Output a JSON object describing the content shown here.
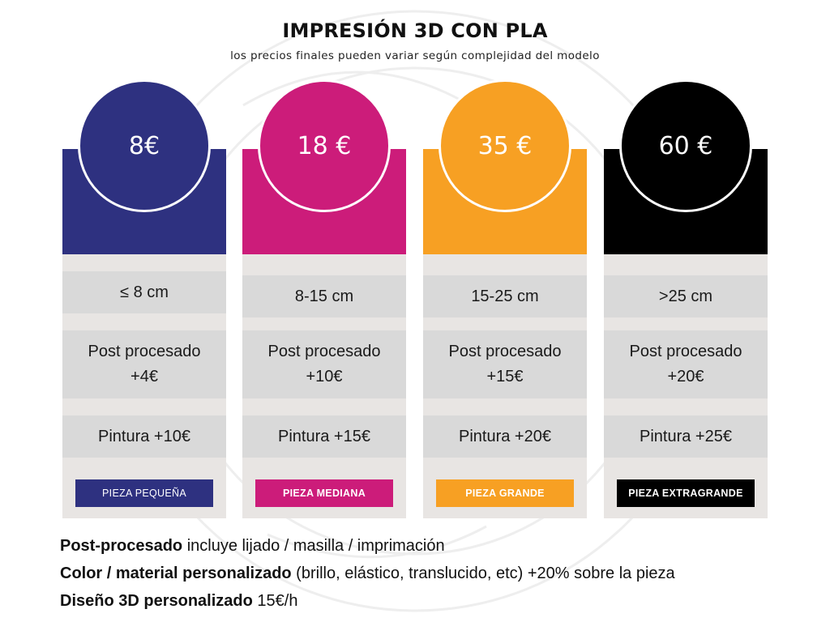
{
  "header": {
    "title": "IMPRESIÓN 3D CON PLA",
    "subtitle": "los precios finales pueden variar según complejidad del modelo"
  },
  "plans": [
    {
      "price": "8€",
      "size": "≤ 8 cm",
      "post_line1": "Post procesado",
      "post_line2": "+4€",
      "paint": "Pintura +10€",
      "tag": "PIEZA PEQUEÑA",
      "color": "#2e3180"
    },
    {
      "price": "18 €",
      "size": "8-15 cm",
      "post_line1": "Post procesado",
      "post_line2": "+10€",
      "paint": "Pintura +15€",
      "tag": "PIEZA MEDIANA",
      "color": "#cc1c7a"
    },
    {
      "price": "35 €",
      "size": "15-25 cm",
      "post_line1": "Post procesado",
      "post_line2": "+15€",
      "paint": "Pintura +20€",
      "tag": "PIEZA GRANDE",
      "color": "#f7a023"
    },
    {
      "price": "60 €",
      "size": ">25 cm",
      "post_line1": "Post procesado",
      "post_line2": "+20€",
      "paint": "Pintura +25€",
      "tag": "PIEZA EXTRAGRANDE",
      "color": "#000000"
    }
  ],
  "notes": [
    {
      "label": "Post-procesado",
      "text": " incluye lijado / masilla / imprimación"
    },
    {
      "label": "Color / material personalizado",
      "text": " (brillo, elástico, translucido, etc) +20% sobre la pieza"
    },
    {
      "label": "Diseño 3D personalizado",
      "text": " 15€/h"
    }
  ]
}
